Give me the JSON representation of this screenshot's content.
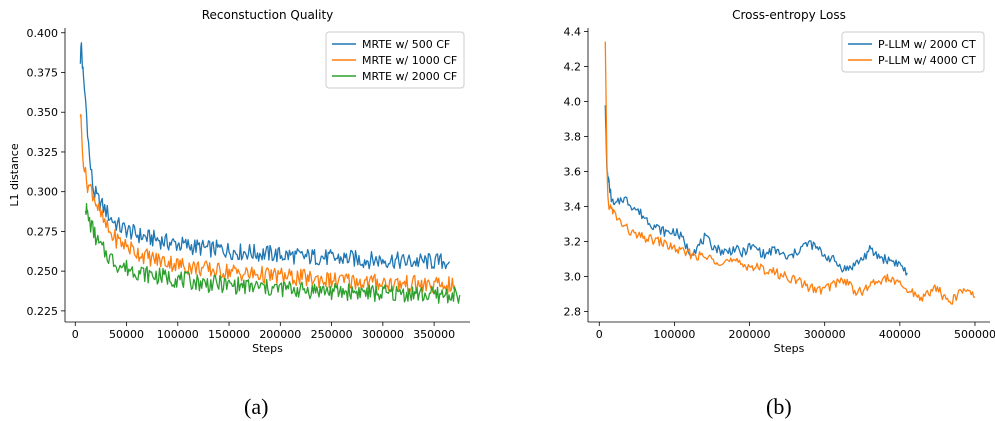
{
  "captions": {
    "a": "(a)",
    "b": "(b)"
  },
  "chart_data": [
    {
      "type": "line",
      "title": "Reconstuction Quality",
      "xlabel": "Steps",
      "ylabel": "L1 distance",
      "xlim": [
        -10000,
        385000
      ],
      "ylim": [
        0.218,
        0.403
      ],
      "xticks": [
        0,
        50000,
        100000,
        150000,
        200000,
        250000,
        300000,
        350000
      ],
      "yticks": [
        0.225,
        0.25,
        0.275,
        0.3,
        0.325,
        0.35,
        0.375,
        0.4
      ],
      "ytick_labels": [
        "0.225",
        "0.250",
        "0.275",
        "0.300",
        "0.325",
        "0.350",
        "0.375",
        "0.400"
      ],
      "grid": false,
      "legend": "top-right",
      "series": [
        {
          "name": "MRTE w/ 500 CF",
          "color": "#1f77b4",
          "x": [
            5000,
            6000,
            7000,
            8000,
            10000,
            12000,
            14000,
            16000,
            18000,
            20000,
            22000,
            25000,
            30000,
            35000,
            40000,
            45000,
            50000,
            60000,
            70000,
            80000,
            90000,
            100000,
            110000,
            120000,
            130000,
            140000,
            150000,
            160000,
            170000,
            180000,
            190000,
            200000,
            210000,
            220000,
            230000,
            240000,
            250000,
            260000,
            270000,
            280000,
            290000,
            300000,
            310000,
            320000,
            330000,
            340000,
            350000,
            360000,
            365000
          ],
          "y": [
            0.384,
            0.393,
            0.38,
            0.37,
            0.358,
            0.34,
            0.32,
            0.31,
            0.3,
            0.298,
            0.295,
            0.292,
            0.288,
            0.283,
            0.28,
            0.277,
            0.276,
            0.273,
            0.271,
            0.27,
            0.268,
            0.267,
            0.266,
            0.265,
            0.264,
            0.264,
            0.263,
            0.262,
            0.262,
            0.261,
            0.261,
            0.26,
            0.26,
            0.259,
            0.259,
            0.259,
            0.258,
            0.258,
            0.258,
            0.257,
            0.257,
            0.257,
            0.257,
            0.256,
            0.256,
            0.256,
            0.256,
            0.256,
            0.256
          ]
        },
        {
          "name": "MRTE w/ 1000 CF",
          "color": "#ff7f0e",
          "x": [
            5000,
            6000,
            8000,
            10000,
            12000,
            14000,
            16000,
            18000,
            20000,
            22000,
            25000,
            30000,
            35000,
            40000,
            45000,
            50000,
            60000,
            70000,
            80000,
            90000,
            100000,
            110000,
            120000,
            130000,
            140000,
            150000,
            160000,
            170000,
            180000,
            190000,
            200000,
            210000,
            220000,
            230000,
            240000,
            250000,
            260000,
            270000,
            280000,
            290000,
            300000,
            310000,
            320000,
            330000,
            340000,
            350000,
            360000,
            370000
          ],
          "y": [
            0.35,
            0.34,
            0.32,
            0.31,
            0.305,
            0.303,
            0.301,
            0.298,
            0.294,
            0.29,
            0.285,
            0.278,
            0.273,
            0.27,
            0.268,
            0.266,
            0.262,
            0.259,
            0.257,
            0.256,
            0.254,
            0.253,
            0.252,
            0.251,
            0.25,
            0.25,
            0.249,
            0.248,
            0.248,
            0.247,
            0.247,
            0.246,
            0.246,
            0.245,
            0.245,
            0.244,
            0.244,
            0.244,
            0.243,
            0.243,
            0.243,
            0.242,
            0.242,
            0.242,
            0.241,
            0.241,
            0.241,
            0.241
          ]
        },
        {
          "name": "MRTE w/ 2000 CF",
          "color": "#2ca02c",
          "x": [
            10000,
            11000,
            12000,
            14000,
            16000,
            18000,
            20000,
            22000,
            25000,
            30000,
            35000,
            40000,
            45000,
            50000,
            60000,
            70000,
            80000,
            90000,
            100000,
            110000,
            120000,
            130000,
            140000,
            150000,
            160000,
            170000,
            180000,
            190000,
            200000,
            210000,
            220000,
            230000,
            240000,
            250000,
            260000,
            270000,
            280000,
            290000,
            300000,
            310000,
            320000,
            330000,
            340000,
            350000,
            360000,
            370000,
            375000
          ],
          "y": [
            0.292,
            0.288,
            0.285,
            0.281,
            0.278,
            0.275,
            0.271,
            0.268,
            0.265,
            0.261,
            0.258,
            0.255,
            0.253,
            0.252,
            0.25,
            0.248,
            0.247,
            0.246,
            0.245,
            0.244,
            0.243,
            0.242,
            0.242,
            0.241,
            0.241,
            0.24,
            0.24,
            0.239,
            0.239,
            0.239,
            0.238,
            0.238,
            0.238,
            0.237,
            0.237,
            0.237,
            0.237,
            0.236,
            0.236,
            0.236,
            0.236,
            0.236,
            0.235,
            0.235,
            0.235,
            0.235,
            0.235
          ]
        }
      ]
    },
    {
      "type": "line",
      "title": "Cross-entropy Loss",
      "xlabel": "Steps",
      "ylabel": "",
      "xlim": [
        -15000,
        520000
      ],
      "ylim": [
        2.74,
        4.42
      ],
      "xticks": [
        0,
        100000,
        200000,
        300000,
        400000,
        500000
      ],
      "yticks": [
        2.8,
        3.0,
        3.2,
        3.4,
        3.6,
        3.8,
        4.0,
        4.2,
        4.4
      ],
      "ytick_labels": [
        "2.8",
        "3.0",
        "3.2",
        "3.4",
        "3.6",
        "3.8",
        "4.0",
        "4.2",
        "4.4"
      ],
      "grid": false,
      "legend": "top-right",
      "series": [
        {
          "name": "P-LLM w/ 2000 CT",
          "color": "#1f77b4",
          "x": [
            8000,
            9000,
            10000,
            11000,
            12000,
            14000,
            16000,
            18000,
            20000,
            25000,
            30000,
            35000,
            40000,
            50000,
            60000,
            70000,
            80000,
            90000,
            100000,
            110000,
            120000,
            130000,
            140000,
            150000,
            160000,
            170000,
            180000,
            190000,
            200000,
            210000,
            220000,
            230000,
            240000,
            250000,
            260000,
            270000,
            280000,
            290000,
            300000,
            310000,
            320000,
            330000,
            340000,
            350000,
            360000,
            370000,
            380000,
            390000,
            400000,
            410000
          ],
          "y": [
            4.0,
            3.8,
            3.62,
            3.58,
            3.55,
            3.5,
            3.45,
            3.42,
            3.4,
            3.42,
            3.45,
            3.44,
            3.42,
            3.38,
            3.34,
            3.3,
            3.27,
            3.25,
            3.26,
            3.22,
            3.14,
            3.16,
            3.22,
            3.18,
            3.15,
            3.14,
            3.16,
            3.13,
            3.17,
            3.16,
            3.12,
            3.15,
            3.14,
            3.1,
            3.13,
            3.17,
            3.19,
            3.16,
            3.12,
            3.1,
            3.06,
            3.04,
            3.07,
            3.1,
            3.15,
            3.12,
            3.1,
            3.09,
            3.07,
            3.02
          ]
        },
        {
          "name": "P-LLM w/ 4000 CT",
          "color": "#ff7f0e",
          "x": [
            8000,
            9000,
            10000,
            11000,
            12000,
            14000,
            16000,
            18000,
            20000,
            25000,
            30000,
            35000,
            40000,
            50000,
            60000,
            70000,
            80000,
            90000,
            100000,
            110000,
            120000,
            130000,
            140000,
            150000,
            160000,
            170000,
            180000,
            190000,
            200000,
            210000,
            220000,
            230000,
            240000,
            250000,
            260000,
            270000,
            280000,
            290000,
            300000,
            310000,
            320000,
            330000,
            340000,
            350000,
            360000,
            370000,
            380000,
            390000,
            400000,
            410000,
            420000,
            430000,
            440000,
            450000,
            460000,
            470000,
            480000,
            490000,
            500000
          ],
          "y": [
            4.33,
            4.0,
            3.7,
            3.5,
            3.42,
            3.4,
            3.38,
            3.37,
            3.36,
            3.33,
            3.3,
            3.28,
            3.26,
            3.23,
            3.22,
            3.21,
            3.2,
            3.18,
            3.16,
            3.14,
            3.13,
            3.12,
            3.11,
            3.1,
            3.09,
            3.09,
            3.08,
            3.07,
            3.06,
            3.05,
            3.04,
            3.03,
            3.01,
            3.0,
            2.98,
            2.96,
            2.94,
            2.92,
            2.93,
            2.95,
            2.98,
            2.97,
            2.92,
            2.91,
            2.95,
            2.97,
            2.99,
            2.98,
            2.95,
            2.92,
            2.9,
            2.88,
            2.91,
            2.94,
            2.87,
            2.86,
            2.91,
            2.93,
            2.88
          ]
        }
      ]
    }
  ]
}
